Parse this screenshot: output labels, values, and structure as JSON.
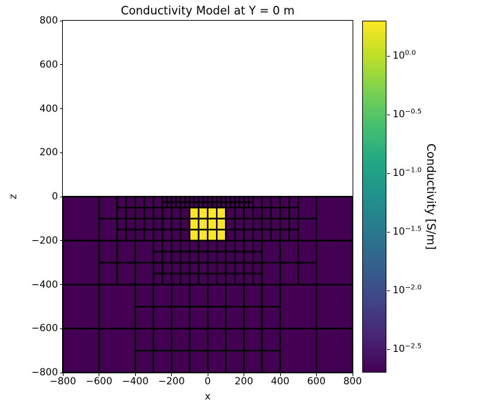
{
  "chart_data": {
    "type": "heatmap",
    "title": "Conductivity Model at Y = 0 m",
    "xlabel": "x",
    "ylabel": "z",
    "xlim": [
      -800,
      800
    ],
    "ylim": [
      -800,
      800
    ],
    "x_ticks": [
      -800,
      -600,
      -400,
      -200,
      0,
      200,
      400,
      600,
      800
    ],
    "x_tick_labels": [
      "−800",
      "−600",
      "−400",
      "−200",
      "0",
      "200",
      "400",
      "600",
      "800"
    ],
    "y_ticks": [
      800,
      600,
      400,
      200,
      0,
      -200,
      -400,
      -600,
      -800
    ],
    "y_tick_labels": [
      "800",
      "600",
      "400",
      "200",
      "0",
      "−200",
      "−400",
      "−600",
      "−800"
    ],
    "grid": true,
    "grid_line_color": "#000000",
    "grid_line_width": 2.2,
    "colorbar": {
      "label": "Conductivity [S/m]",
      "scale": "log10",
      "vmin_log10": -2.69897,
      "vmax_log10": 0.30103,
      "ticks": [
        {
          "value": 0.0,
          "exponent": "0.0"
        },
        {
          "value": -0.5,
          "exponent": "−0.5"
        },
        {
          "value": -1.0,
          "exponent": "−1.0"
        },
        {
          "value": -1.5,
          "exponent": "−1.5"
        },
        {
          "value": -2.0,
          "exponent": "−2.0"
        },
        {
          "value": -2.5,
          "exponent": "−2.5"
        }
      ],
      "colormap": "viridis",
      "colormap_stops": [
        "#440154",
        "#482475",
        "#414487",
        "#355f8d",
        "#2a788e",
        "#21918c",
        "#22a884",
        "#44bf70",
        "#7ad151",
        "#bddf26",
        "#fde725"
      ],
      "tick_label_base": "10"
    },
    "model": {
      "air_region": {
        "z_top": 800,
        "z_bottom": 0,
        "color": "#ffffff"
      },
      "background_conductivity_S_per_m": 0.002,
      "block_conductivity_S_per_m": 2.0,
      "block_extent": {
        "x": [
          -100,
          100
        ],
        "z": [
          -200,
          -50
        ]
      }
    },
    "mesh_regions": [
      {
        "x": [
          -800,
          -600
        ],
        "z": [
          0,
          -200
        ],
        "nx": 1,
        "nz": 1,
        "value": 0.002
      },
      {
        "x": [
          -600,
          -500
        ],
        "z": [
          0,
          -200
        ],
        "nx": 1,
        "nz": 2,
        "value": 0.002
      },
      {
        "x": [
          -500,
          -250
        ],
        "z": [
          0,
          -50
        ],
        "nx": 5,
        "nz": 1,
        "value": 0.002
      },
      {
        "x": [
          -250,
          250
        ],
        "z": [
          0,
          -50
        ],
        "nx": 20,
        "nz": 2,
        "value": 0.002
      },
      {
        "x": [
          250,
          500
        ],
        "z": [
          0,
          -50
        ],
        "nx": 5,
        "nz": 1,
        "value": 0.002
      },
      {
        "x": [
          -500,
          -100
        ],
        "z": [
          -50,
          -200
        ],
        "nx": 8,
        "nz": 3,
        "value": 0.002
      },
      {
        "x": [
          -100,
          100
        ],
        "z": [
          -50,
          -200
        ],
        "nx": 4,
        "nz": 3,
        "value": 2.0
      },
      {
        "x": [
          100,
          500
        ],
        "z": [
          -50,
          -200
        ],
        "nx": 8,
        "nz": 3,
        "value": 0.002
      },
      {
        "x": [
          500,
          600
        ],
        "z": [
          0,
          -200
        ],
        "nx": 1,
        "nz": 2,
        "value": 0.002
      },
      {
        "x": [
          600,
          800
        ],
        "z": [
          0,
          -200
        ],
        "nx": 1,
        "nz": 1,
        "value": 0.002
      },
      {
        "x": [
          -800,
          -600
        ],
        "z": [
          -200,
          -400
        ],
        "nx": 1,
        "nz": 1,
        "value": 0.002
      },
      {
        "x": [
          -600,
          -300
        ],
        "z": [
          -200,
          -400
        ],
        "nx": 3,
        "nz": 2,
        "value": 0.002
      },
      {
        "x": [
          -300,
          300
        ],
        "z": [
          -200,
          -400
        ],
        "nx": 12,
        "nz": 4,
        "value": 0.002
      },
      {
        "x": [
          300,
          600
        ],
        "z": [
          -200,
          -400
        ],
        "nx": 3,
        "nz": 2,
        "value": 0.002
      },
      {
        "x": [
          600,
          800
        ],
        "z": [
          -200,
          -400
        ],
        "nx": 1,
        "nz": 1,
        "value": 0.002
      },
      {
        "x": [
          -800,
          -600
        ],
        "z": [
          -400,
          -800
        ],
        "nx": 1,
        "nz": 2,
        "value": 0.002
      },
      {
        "x": [
          -600,
          -400
        ],
        "z": [
          -400,
          -800
        ],
        "nx": 1,
        "nz": 2,
        "value": 0.002
      },
      {
        "x": [
          -400,
          400
        ],
        "z": [
          -400,
          -800
        ],
        "nx": 8,
        "nz": 4,
        "value": 0.002
      },
      {
        "x": [
          400,
          600
        ],
        "z": [
          -400,
          -800
        ],
        "nx": 1,
        "nz": 2,
        "value": 0.002
      },
      {
        "x": [
          600,
          800
        ],
        "z": [
          -400,
          -800
        ],
        "nx": 1,
        "nz": 2,
        "value": 0.002
      }
    ]
  }
}
